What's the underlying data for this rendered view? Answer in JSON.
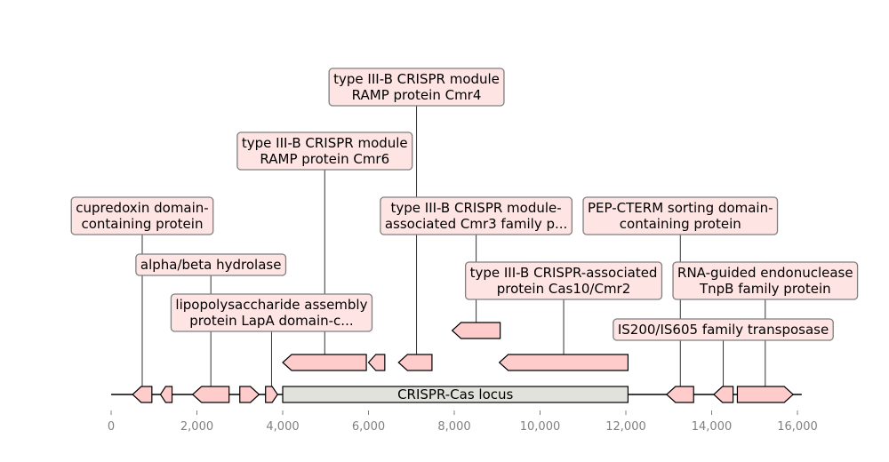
{
  "diagram": {
    "axis": {
      "min": 0,
      "max": 16000,
      "ticks": [
        "0",
        "2,000",
        "4,000",
        "6,000",
        "8,000",
        "10,000",
        "12,000",
        "14,000",
        "16,000"
      ]
    },
    "sequence": {
      "start": 0,
      "end": 16100
    },
    "locus": {
      "label": "CRISPR-Cas locus",
      "start": 4000,
      "end": 12050,
      "color": "#e2e2dc"
    },
    "feature_color": "#ffcccc",
    "label_color": "#ffe4e4",
    "features": [
      {
        "name": "cupredoxin",
        "start": 500,
        "end": 950,
        "strand": -1,
        "level": 0
      },
      {
        "name": "small-1",
        "start": 1150,
        "end": 1420,
        "strand": -1,
        "level": 0
      },
      {
        "name": "alpha-beta-hydrolase",
        "start": 1900,
        "end": 2750,
        "strand": -1,
        "level": 0
      },
      {
        "name": "gene-4",
        "start": 3000,
        "end": 3450,
        "strand": 1,
        "level": 0
      },
      {
        "name": "lapA",
        "start": 3600,
        "end": 3880,
        "strand": 1,
        "level": 0
      },
      {
        "name": "cmr6",
        "start": 4000,
        "end": 5950,
        "strand": -1,
        "level": 1
      },
      {
        "name": "small-2",
        "start": 6000,
        "end": 6380,
        "strand": -1,
        "level": 1
      },
      {
        "name": "cmr4",
        "start": 6700,
        "end": 7480,
        "strand": -1,
        "level": 1
      },
      {
        "name": "cmr3",
        "start": 7950,
        "end": 9070,
        "strand": -1,
        "level": 2
      },
      {
        "name": "cas10",
        "start": 9050,
        "end": 12050,
        "strand": -1,
        "level": 1
      },
      {
        "name": "pep-cterm",
        "start": 12950,
        "end": 13580,
        "strand": -1,
        "level": 0
      },
      {
        "name": "is200",
        "start": 14050,
        "end": 14500,
        "strand": -1,
        "level": 0
      },
      {
        "name": "tnpB",
        "start": 14600,
        "end": 15900,
        "strand": 1,
        "level": 0
      }
    ],
    "labels": [
      {
        "lines": [
          "type III-B CRISPR module",
          "RAMP protein Cmr4"
        ],
        "pos": 7120,
        "row": 0
      },
      {
        "lines": [
          "type III-B CRISPR module",
          "RAMP protein Cmr6"
        ],
        "pos": 4980,
        "row": 1
      },
      {
        "lines": [
          "cupredoxin domain-",
          "containing protein"
        ],
        "pos": 725,
        "row": 2
      },
      {
        "lines": [
          "type III-B CRISPR module-",
          "associated Cmr3 family p..."
        ],
        "pos": 8510,
        "row": 2
      },
      {
        "lines": [
          "PEP-CTERM sorting domain-",
          "containing protein"
        ],
        "pos": 13270,
        "row": 2
      },
      {
        "lines": [
          "alpha/beta hydrolase"
        ],
        "pos": 2325,
        "row": 3
      },
      {
        "lines": [
          "type III-B CRISPR-associated",
          "protein Cas10/Cmr2"
        ],
        "pos": 10550,
        "row": 4
      },
      {
        "lines": [
          "RNA-guided endonuclease",
          "TnpB family protein"
        ],
        "pos": 15250,
        "row": 4
      },
      {
        "lines": [
          "lipopolysaccharide assembly",
          "protein LapA domain-c..."
        ],
        "pos": 3740,
        "row": 5
      },
      {
        "lines": [
          "IS200/IS605 family transposase"
        ],
        "pos": 14270,
        "row": 6
      }
    ]
  }
}
